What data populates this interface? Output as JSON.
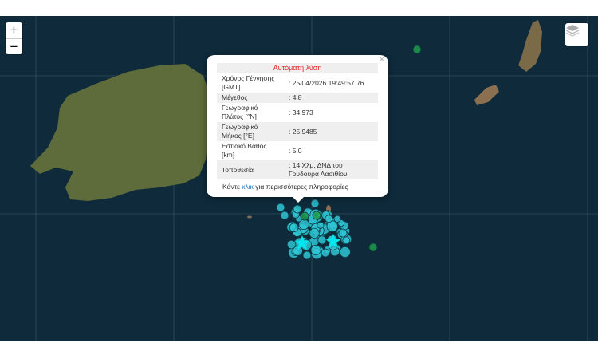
{
  "map": {
    "zoom_in": "+",
    "zoom_out": "−",
    "layers_icon": "layers-icon",
    "colors": {
      "sea": "#0e2a3b",
      "land": "#5e6e3a",
      "quake_auto": "#2fc4d4",
      "quake_manual": "#1e9a4a",
      "star": "#00e5ee"
    }
  },
  "popup": {
    "close": "×",
    "header": "Αυτόματη λύση",
    "rows": [
      {
        "label": "Χρόνος Γέννησης [GMT]",
        "value": ": 25/04/2026 19:49:57.76"
      },
      {
        "label": "Μέγεθος",
        "value": ": 4.8"
      },
      {
        "label": "Γεωγραφικό Πλάτος [°N]",
        "value": ": 34.973"
      },
      {
        "label": "Γεωγραφικό Μήκος [°E]",
        "value": ": 25.9485"
      },
      {
        "label": "Εστιακό Βάθος [km]",
        "value": ": 5.0"
      },
      {
        "label": "Τοποθεσία",
        "value": ": 14 Χλμ. ΔΝΔ του Γουδουρά Λασιθίου"
      }
    ],
    "more_prefix": "Κάντε ",
    "more_link": "κλικ",
    "more_suffix": " για περισσότερες πληροφορίες"
  }
}
